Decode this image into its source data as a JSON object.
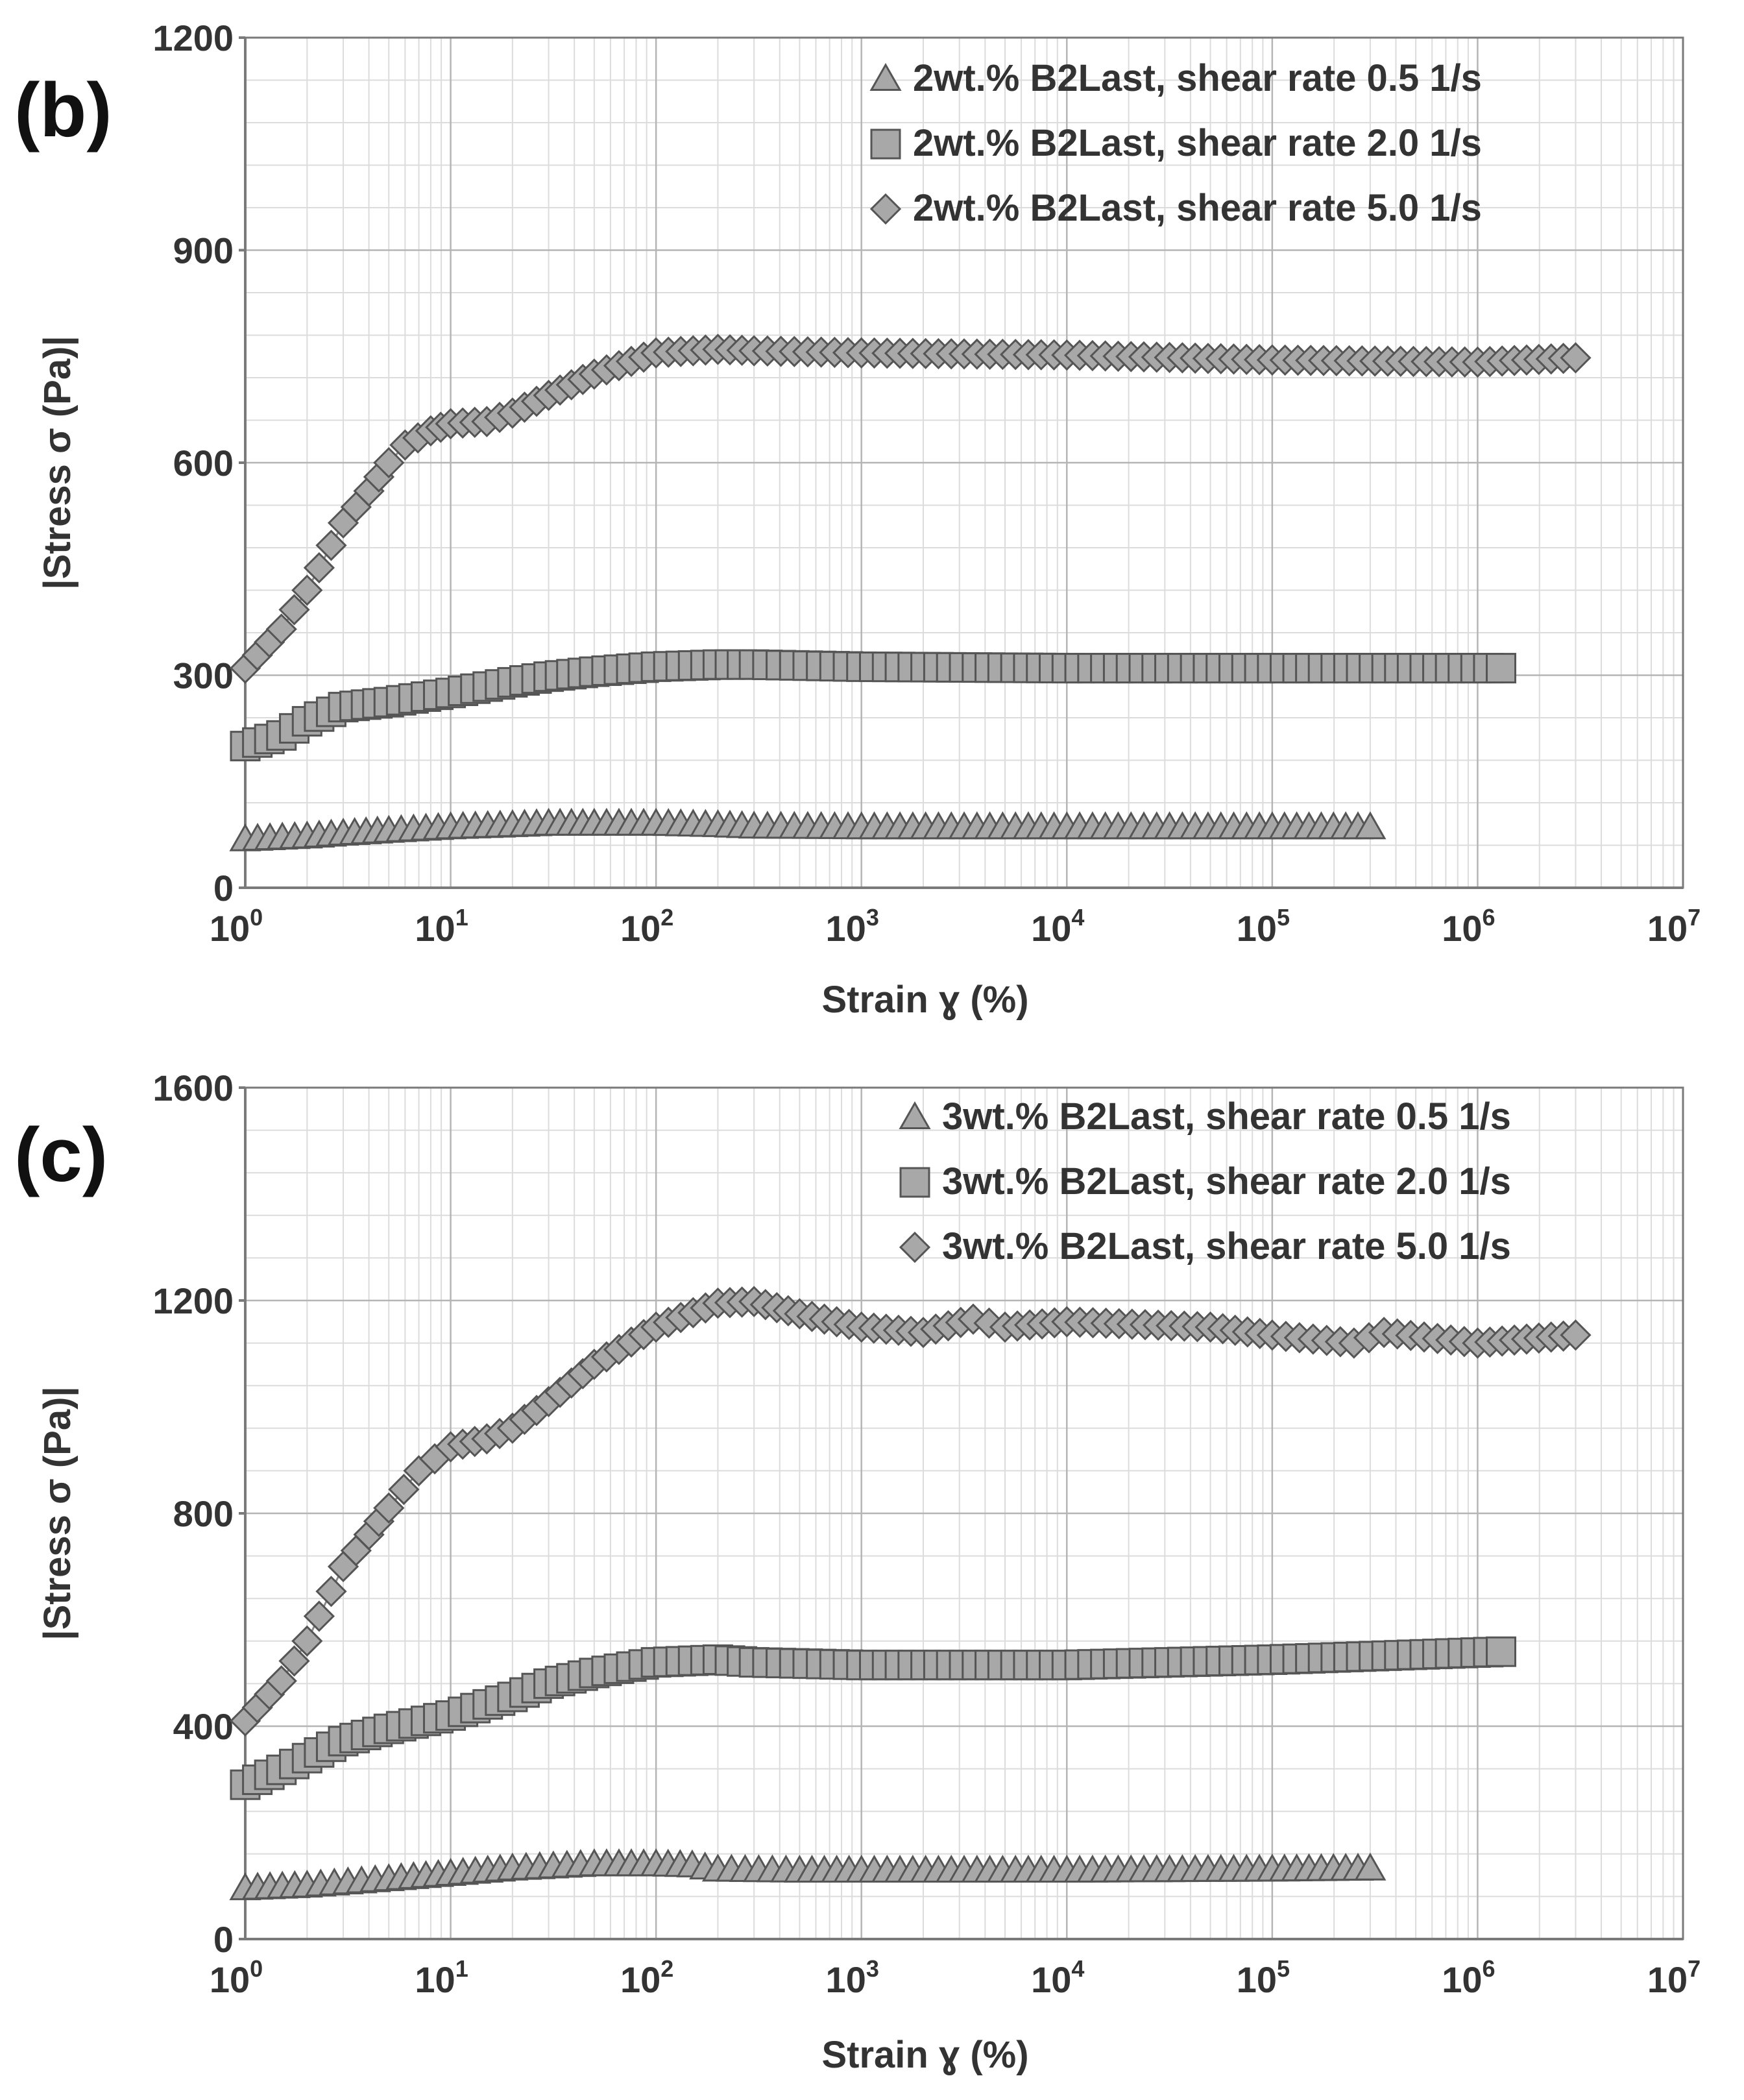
{
  "colors": {
    "background": "#ffffff",
    "marker_fill": "#a8a8a8",
    "marker_stroke": "#555555",
    "text": "#333333"
  },
  "chart_data": [
    {
      "id": "b",
      "panel_label": "(b)",
      "type": "scatter",
      "x_scale": "log",
      "xlabel": "Strain ɣ (%)",
      "ylabel": "|Stress σ (Pa)|",
      "xlim": [
        1,
        10000000
      ],
      "ylim": [
        0,
        1200
      ],
      "x_ticks": [
        {
          "base": "10",
          "exp": "0"
        },
        {
          "base": "10",
          "exp": "1"
        },
        {
          "base": "10",
          "exp": "2"
        },
        {
          "base": "10",
          "exp": "3"
        },
        {
          "base": "10",
          "exp": "4"
        },
        {
          "base": "10",
          "exp": "5"
        },
        {
          "base": "10",
          "exp": "6"
        },
        {
          "base": "10",
          "exp": "7"
        }
      ],
      "y_ticks": [
        "0",
        "300",
        "600",
        "900",
        "1200"
      ],
      "legend_position": "top-right",
      "series": [
        {
          "name": "2wt.% B2Last, shear rate 0.5 1/s",
          "marker": "triangle",
          "x": [
            1,
            2,
            3,
            5,
            10,
            20,
            30,
            50,
            100,
            200,
            300,
            1000,
            10000,
            100000,
            300000
          ],
          "values": [
            68,
            72,
            76,
            80,
            85,
            88,
            90,
            90,
            90,
            88,
            86,
            85,
            85,
            85,
            85
          ]
        },
        {
          "name": "2wt.% B2Last, shear rate 2.0 1/s",
          "marker": "square",
          "x": [
            1,
            1.5,
            2,
            3,
            5,
            10,
            20,
            30,
            50,
            100,
            200,
            300,
            1000,
            10000,
            100000,
            1300000
          ],
          "values": [
            200,
            215,
            235,
            255,
            262,
            275,
            290,
            298,
            305,
            312,
            315,
            315,
            312,
            310,
            310,
            310
          ]
        },
        {
          "name": "2wt.% B2Last, shear rate 5.0 1/s",
          "marker": "diamond",
          "x": [
            1,
            1.5,
            2,
            3,
            4,
            5,
            6,
            8,
            10,
            15,
            20,
            30,
            50,
            100,
            200,
            300,
            1000,
            10000,
            100000,
            1000000,
            3000000
          ],
          "values": [
            310,
            365,
            420,
            515,
            560,
            600,
            625,
            645,
            655,
            658,
            670,
            695,
            725,
            755,
            760,
            758,
            755,
            752,
            745,
            742,
            748
          ]
        }
      ]
    },
    {
      "id": "c",
      "panel_label": "(c)",
      "type": "scatter",
      "x_scale": "log",
      "xlabel": "Strain ɣ (%)",
      "ylabel": "|Stress σ (Pa)|",
      "xlim": [
        1,
        10000000
      ],
      "ylim": [
        0,
        1600
      ],
      "x_ticks": [
        {
          "base": "10",
          "exp": "0"
        },
        {
          "base": "10",
          "exp": "1"
        },
        {
          "base": "10",
          "exp": "2"
        },
        {
          "base": "10",
          "exp": "3"
        },
        {
          "base": "10",
          "exp": "4"
        },
        {
          "base": "10",
          "exp": "5"
        },
        {
          "base": "10",
          "exp": "6"
        },
        {
          "base": "10",
          "exp": "7"
        }
      ],
      "y_ticks": [
        "0",
        "400",
        "800",
        "1200",
        "1600"
      ],
      "legend_position": "top-right",
      "series": [
        {
          "name": "3wt.% B2Last, shear rate 0.5 1/s",
          "marker": "triangle",
          "x": [
            1,
            2,
            5,
            10,
            20,
            50,
            100,
            150,
            200,
            500,
            1000,
            10000,
            100000,
            300000
          ],
          "values": [
            95,
            100,
            112,
            122,
            132,
            140,
            140,
            138,
            130,
            128,
            128,
            128,
            130,
            132
          ]
        },
        {
          "name": "3wt.% B2Last, shear rate 2.0 1/s",
          "marker": "square",
          "x": [
            1,
            1.5,
            2,
            3,
            5,
            10,
            20,
            30,
            50,
            100,
            200,
            300,
            1000,
            10000,
            100000,
            1300000
          ],
          "values": [
            290,
            318,
            340,
            372,
            395,
            420,
            455,
            480,
            500,
            520,
            525,
            520,
            515,
            515,
            525,
            540
          ]
        },
        {
          "name": "3wt.% B2Last, shear rate 5.0 1/s",
          "marker": "diamond",
          "x": [
            1,
            1.5,
            2,
            3,
            4,
            5,
            7,
            10,
            15,
            20,
            30,
            50,
            100,
            200,
            300,
            500,
            1000,
            2000,
            3500,
            5000,
            10000,
            50000,
            100000,
            250000,
            350000,
            1000000,
            3000000
          ],
          "values": [
            410,
            485,
            560,
            700,
            760,
            810,
            880,
            925,
            940,
            960,
            1010,
            1080,
            1150,
            1195,
            1198,
            1175,
            1150,
            1140,
            1165,
            1150,
            1160,
            1150,
            1135,
            1120,
            1140,
            1120,
            1135
          ]
        }
      ]
    }
  ]
}
